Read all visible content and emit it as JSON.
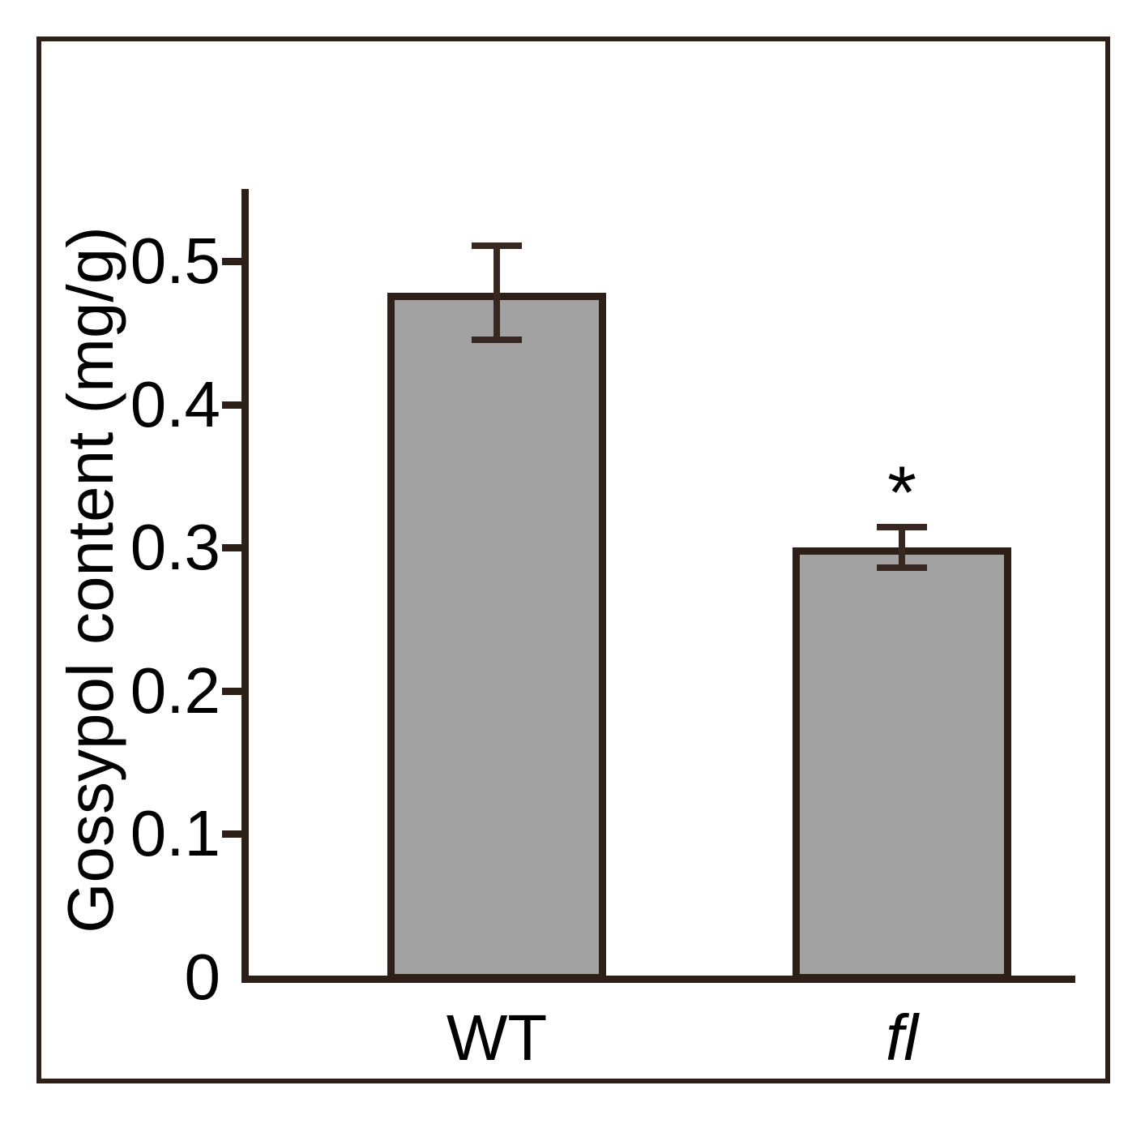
{
  "colors": {
    "line": "#2e2019",
    "error_bar_line": "#372720",
    "bar_fill": "#a1a2a1",
    "text": "#000000",
    "background": "#ffffff"
  },
  "chart_data": {
    "type": "bar",
    "title": "",
    "ylabel": "Gossypol content (mg/g)",
    "xlabel": "",
    "categories": [
      "WT",
      "fl"
    ],
    "category_styles": [
      "normal",
      "italic"
    ],
    "values": [
      0.478,
      0.3
    ],
    "errors": [
      0.033,
      0.014
    ],
    "annotations": [
      "",
      "*"
    ],
    "ylim": [
      0,
      0.55
    ],
    "yticks": [
      "0",
      "0.1",
      "0.2",
      "0.3",
      "0.4",
      "0.5"
    ],
    "grid": false,
    "legend": null,
    "bar_color_note": "gray fill with dark brown outline"
  }
}
